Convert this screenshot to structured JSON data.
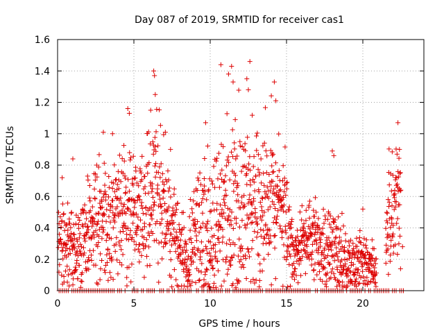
{
  "chart_data": {
    "type": "scatter",
    "title": "Day 087 of 2019, SRMTID for receiver cas1",
    "xlabel": "GPS time / hours",
    "ylabel": "SRMTID / TECUs",
    "xlim": [
      0,
      24
    ],
    "ylim": [
      0,
      1.6
    ],
    "xticks": [
      0,
      5,
      10,
      15,
      20
    ],
    "yticks": [
      0,
      0.2,
      0.4,
      0.6,
      0.8,
      1,
      1.2,
      1.4,
      1.6
    ],
    "xtick_labels": [
      "0",
      "5",
      "10",
      "15",
      "20"
    ],
    "ytick_labels": [
      "0",
      "0.2",
      "0.4",
      "0.6",
      "0.8",
      "1",
      "1.2",
      "1.4",
      "1.6"
    ],
    "grid": true,
    "legend": "none",
    "marker": "+",
    "series_color": "#dd0000",
    "baseline": {
      "y": 0,
      "x_start": 0.1,
      "x_end": 22.8,
      "step": 0.12
    },
    "envelope": [
      {
        "x": 0.0,
        "mean": 0.35,
        "spread": 0.15
      },
      {
        "x": 1.0,
        "mean": 0.25,
        "spread": 0.12
      },
      {
        "x": 2.0,
        "mean": 0.38,
        "spread": 0.17
      },
      {
        "x": 3.0,
        "mean": 0.45,
        "spread": 0.2
      },
      {
        "x": 4.0,
        "mean": 0.5,
        "spread": 0.2
      },
      {
        "x": 5.0,
        "mean": 0.52,
        "spread": 0.2
      },
      {
        "x": 6.0,
        "mean": 0.58,
        "spread": 0.25
      },
      {
        "x": 6.5,
        "mean": 0.7,
        "spread": 0.3
      },
      {
        "x": 7.0,
        "mean": 0.5,
        "spread": 0.2
      },
      {
        "x": 8.0,
        "mean": 0.3,
        "spread": 0.15
      },
      {
        "x": 8.5,
        "mean": 0.15,
        "spread": 0.1
      },
      {
        "x": 9.0,
        "mean": 0.35,
        "spread": 0.2
      },
      {
        "x": 10.0,
        "mean": 0.45,
        "spread": 0.25
      },
      {
        "x": 11.0,
        "mean": 0.5,
        "spread": 0.28
      },
      {
        "x": 12.0,
        "mean": 0.55,
        "spread": 0.3
      },
      {
        "x": 13.0,
        "mean": 0.52,
        "spread": 0.27
      },
      {
        "x": 14.0,
        "mean": 0.6,
        "spread": 0.25
      },
      {
        "x": 15.0,
        "mean": 0.45,
        "spread": 0.2
      },
      {
        "x": 15.5,
        "mean": 0.22,
        "spread": 0.1
      },
      {
        "x": 16.5,
        "mean": 0.35,
        "spread": 0.12
      },
      {
        "x": 17.5,
        "mean": 0.25,
        "spread": 0.12
      },
      {
        "x": 18.0,
        "mean": 0.3,
        "spread": 0.15
      },
      {
        "x": 19.0,
        "mean": 0.17,
        "spread": 0.1
      },
      {
        "x": 20.0,
        "mean": 0.18,
        "spread": 0.1
      },
      {
        "x": 20.9,
        "mean": 0.15,
        "spread": 0.07
      },
      {
        "x": 21.0,
        "mean": null,
        "spread": null
      },
      {
        "x": 21.5,
        "mean": 0.45,
        "spread": 0.15
      },
      {
        "x": 22.5,
        "mean": 0.55,
        "spread": 0.2
      }
    ],
    "notable_points": [
      {
        "x": 0.3,
        "y": 0.72
      },
      {
        "x": 1.0,
        "y": 0.84
      },
      {
        "x": 3.0,
        "y": 1.01
      },
      {
        "x": 3.6,
        "y": 1.0
      },
      {
        "x": 4.6,
        "y": 1.16
      },
      {
        "x": 4.7,
        "y": 1.13
      },
      {
        "x": 6.1,
        "y": 1.15
      },
      {
        "x": 6.3,
        "y": 1.4
      },
      {
        "x": 6.35,
        "y": 1.37
      },
      {
        "x": 6.4,
        "y": 1.25
      },
      {
        "x": 7.4,
        "y": 0.9
      },
      {
        "x": 9.7,
        "y": 1.07
      },
      {
        "x": 10.2,
        "y": 0.02
      },
      {
        "x": 10.7,
        "y": 1.44
      },
      {
        "x": 11.2,
        "y": 1.38
      },
      {
        "x": 11.4,
        "y": 1.43
      },
      {
        "x": 11.5,
        "y": 1.33
      },
      {
        "x": 12.4,
        "y": 1.35
      },
      {
        "x": 12.6,
        "y": 1.46
      },
      {
        "x": 12.5,
        "y": 1.28
      },
      {
        "x": 14.2,
        "y": 1.33
      },
      {
        "x": 14.3,
        "y": 1.21
      },
      {
        "x": 18.0,
        "y": 0.89
      },
      {
        "x": 18.1,
        "y": 0.86
      },
      {
        "x": 20.0,
        "y": 0.52
      },
      {
        "x": 22.3,
        "y": 1.07
      },
      {
        "x": 22.4,
        "y": 0.9
      },
      {
        "x": 22.6,
        "y": 0.28
      }
    ]
  }
}
